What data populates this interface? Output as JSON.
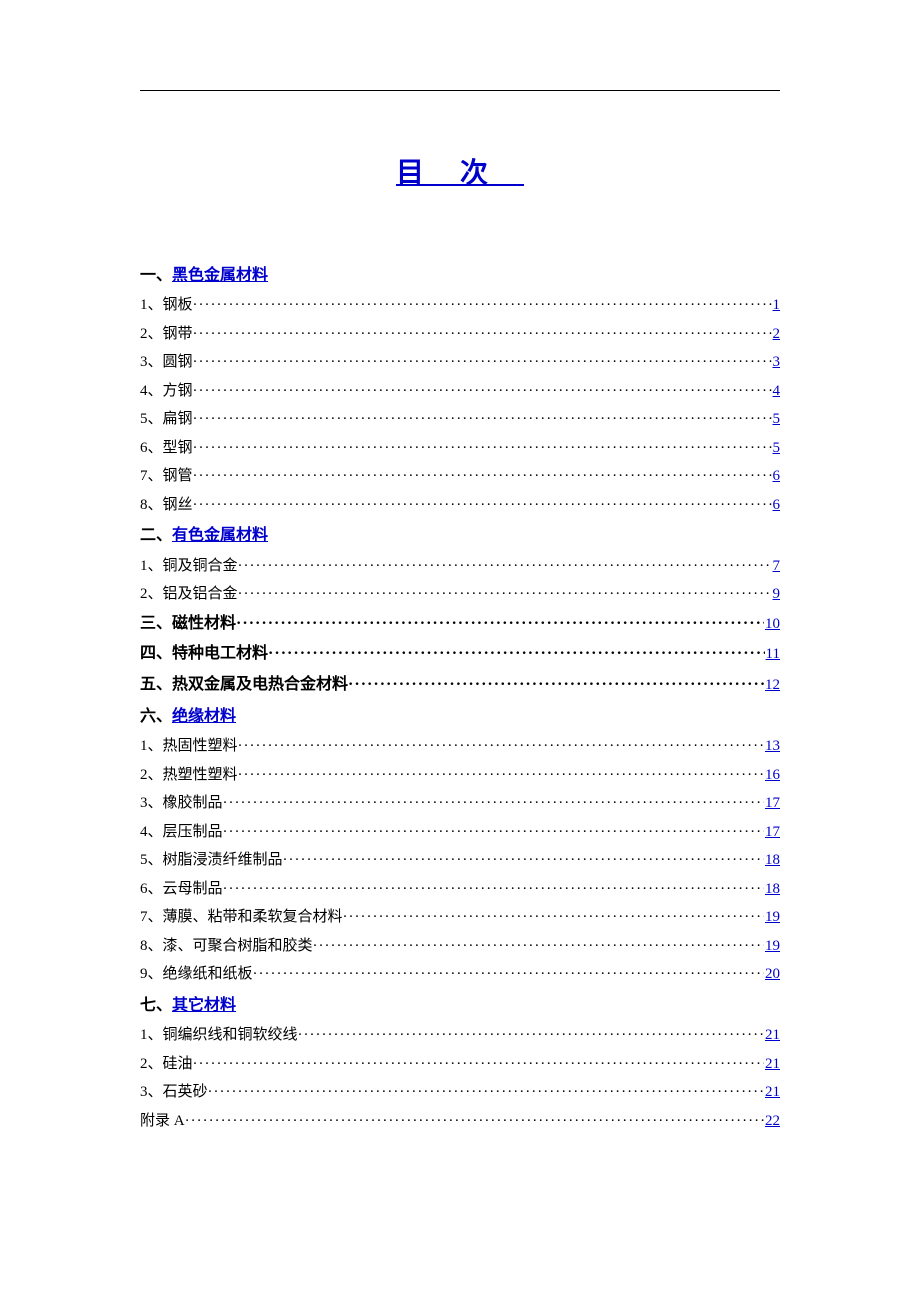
{
  "title": "目次",
  "colors": {
    "link": "#0000cc",
    "text": "#000000",
    "background": "#ffffff",
    "rule": "#000000"
  },
  "toc": [
    {
      "type": "section",
      "num": "一、",
      "title": "黑色金属材料",
      "is_link": true
    },
    {
      "type": "entry",
      "num": "1、",
      "title": "钢板",
      "page": "1"
    },
    {
      "type": "entry",
      "num": "2、",
      "title": "钢带",
      "page": "2"
    },
    {
      "type": "entry",
      "num": "3、",
      "title": "圆钢",
      "page": "3"
    },
    {
      "type": "entry",
      "num": "4、",
      "title": "方钢",
      "page": "4"
    },
    {
      "type": "entry",
      "num": "5、",
      "title": "扁钢",
      "page": "5"
    },
    {
      "type": "entry",
      "num": "6、",
      "title": "型钢",
      "page": "5"
    },
    {
      "type": "entry",
      "num": "7、",
      "title": "钢管",
      "page": "6"
    },
    {
      "type": "entry",
      "num": "8、",
      "title": "钢丝",
      "page": "6"
    },
    {
      "type": "section",
      "num": "二、",
      "title": "有色金属材料",
      "is_link": true
    },
    {
      "type": "entry",
      "num": "1、",
      "title": "铜及铜合金",
      "page": "7"
    },
    {
      "type": "entry",
      "num": "2、",
      "title": "铝及铝合金",
      "page": "9"
    },
    {
      "type": "section_entry",
      "num": "三、",
      "title": "磁性材料",
      "page": "10"
    },
    {
      "type": "section_entry",
      "num": "四、",
      "title": "特种电工材料",
      "page": "11"
    },
    {
      "type": "section_entry",
      "num": "五、",
      "title": "热双金属及电热合金材料",
      "page": "12"
    },
    {
      "type": "section",
      "num": "六、",
      "title": "绝缘材料",
      "is_link": true
    },
    {
      "type": "entry",
      "num": "1、",
      "title": "热固性塑料",
      "page": "13"
    },
    {
      "type": "entry",
      "num": "2、",
      "title": "热塑性塑料",
      "page": "16"
    },
    {
      "type": "entry",
      "num": "3、",
      "title": "橡胶制品",
      "page": "17"
    },
    {
      "type": "entry",
      "num": "4、",
      "title": "层压制品",
      "page": "17"
    },
    {
      "type": "entry",
      "num": "5、",
      "title": "树脂浸渍纤维制品",
      "page": "18"
    },
    {
      "type": "entry",
      "num": "6、",
      "title": "云母制品",
      "page": "18"
    },
    {
      "type": "entry",
      "num": "7、",
      "title": "薄膜、粘带和柔软复合材料",
      "page": "19"
    },
    {
      "type": "entry",
      "num": "8、",
      "title": "漆、可聚合树脂和胶类",
      "page": "19"
    },
    {
      "type": "entry",
      "num": "9、",
      "title": "绝缘纸和纸板",
      "page": "20"
    },
    {
      "type": "section",
      "num": "七、",
      "title": "其它材料",
      "is_link": true
    },
    {
      "type": "entry",
      "num": "1、",
      "title": "铜编织线和铜软绞线",
      "page": "21"
    },
    {
      "type": "entry",
      "num": "2、",
      "title": "硅油",
      "page": "21"
    },
    {
      "type": "entry",
      "num": "3、",
      "title": "石英砂",
      "page": "21"
    },
    {
      "type": "entry",
      "num": "",
      "title": "附录 A",
      "page": "22"
    }
  ]
}
